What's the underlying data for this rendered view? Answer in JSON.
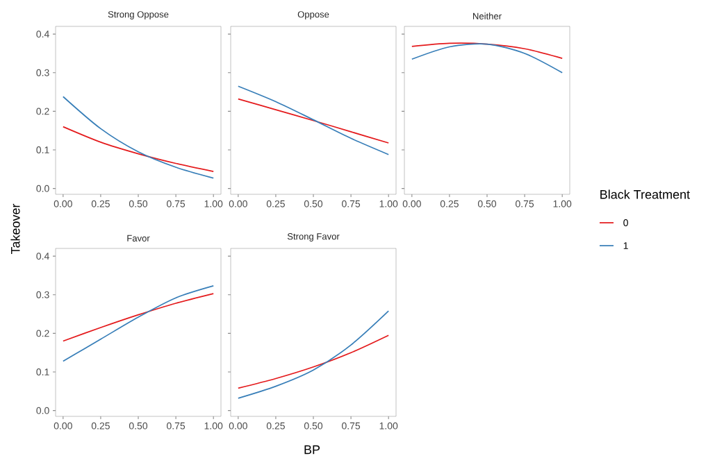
{
  "chart_data": [
    {
      "type": "line",
      "title": "Strong Oppose",
      "ylabel": "Takeover",
      "x": [
        0,
        0.25,
        0.5,
        0.75,
        1
      ],
      "xlim": [
        -0.05,
        1.05
      ],
      "ylim": [
        -0.015,
        0.42
      ],
      "xticks": [
        {
          "value": 0,
          "label": "0.00"
        },
        {
          "value": 0.25,
          "label": "0.25"
        },
        {
          "value": 0.5,
          "label": "0.50"
        },
        {
          "value": 0.75,
          "label": "0.75"
        },
        {
          "value": 1,
          "label": "1.00"
        }
      ],
      "yticks": [
        {
          "value": 0,
          "label": "0.0"
        },
        0.1,
        0.2,
        0.3,
        0.4
      ],
      "series": [
        {
          "color": "#e41a1c",
          "values": [
            0.16,
            0.12,
            0.09,
            0.065,
            0.044
          ]
        },
        {
          "color": "#377eb8",
          "values": [
            0.238,
            0.155,
            0.095,
            0.055,
            0.027
          ]
        }
      ]
    },
    {
      "type": "line",
      "title": "Oppose",
      "x": [
        0,
        0.25,
        0.5,
        0.75,
        1
      ],
      "xlim": [
        -0.05,
        1.05
      ],
      "ylim": [
        -0.015,
        0.42
      ],
      "xticks": [
        {
          "value": 0,
          "label": "0.00"
        },
        {
          "value": 0.25,
          "label": "0.25"
        },
        {
          "value": 0.5,
          "label": "0.50"
        },
        {
          "value": 0.75,
          "label": "0.75"
        },
        {
          "value": 1,
          "label": "1.00"
        }
      ],
      "yticks": [
        {
          "value": 0,
          "label": null
        },
        {
          "value": 0.1,
          "label": null
        },
        {
          "value": 0.2,
          "label": null
        },
        {
          "value": 0.3,
          "label": null
        },
        {
          "value": 0.4,
          "label": null
        }
      ],
      "tick_labels": "x",
      "series": [
        {
          "color": "#e41a1c",
          "values": [
            0.232,
            0.204,
            0.176,
            0.147,
            0.118
          ]
        },
        {
          "color": "#377eb8",
          "values": [
            0.265,
            0.225,
            0.178,
            0.13,
            0.088
          ]
        }
      ]
    },
    {
      "type": "line",
      "title": "Neither",
      "legend_title": "Black Treatment",
      "legend": "right",
      "x": [
        0,
        0.25,
        0.5,
        0.75,
        1
      ],
      "xlim": [
        -0.05,
        1.05
      ],
      "ylim": [
        -0.015,
        0.42
      ],
      "xticks": [
        {
          "value": 0,
          "label": "0.00"
        },
        {
          "value": 0.25,
          "label": "0.25"
        },
        {
          "value": 0.5,
          "label": "0.50"
        },
        {
          "value": 0.75,
          "label": "0.75"
        },
        {
          "value": 1,
          "label": "1.00"
        }
      ],
      "yticks": [
        {
          "value": 0,
          "label": null
        },
        {
          "value": 0.1,
          "label": null
        },
        {
          "value": 0.2,
          "label": null
        },
        {
          "value": 0.3,
          "label": null
        },
        {
          "value": 0.4,
          "label": null
        }
      ],
      "tick_labels": "x",
      "series": [
        {
          "name": "0",
          "color": "#e41a1c",
          "values": [
            0.368,
            0.376,
            0.374,
            0.362,
            0.337
          ]
        },
        {
          "name": "1",
          "color": "#377eb8",
          "values": [
            0.335,
            0.367,
            0.374,
            0.35,
            0.3
          ]
        }
      ]
    },
    {
      "type": "line",
      "title": "Favor",
      "x": [
        0,
        0.25,
        0.5,
        0.75,
        1
      ],
      "xlim": [
        -0.05,
        1.05
      ],
      "ylim": [
        -0.015,
        0.42
      ],
      "xticks": [
        {
          "value": 0,
          "label": "0.00"
        },
        {
          "value": 0.25,
          "label": "0.25"
        },
        {
          "value": 0.5,
          "label": "0.50"
        },
        {
          "value": 0.75,
          "label": "0.75"
        },
        {
          "value": 1,
          "label": "1.00"
        }
      ],
      "yticks": [
        {
          "value": 0,
          "label": "0.0"
        },
        0.1,
        0.2,
        0.3,
        0.4
      ],
      "series": [
        {
          "color": "#e41a1c",
          "values": [
            0.18,
            0.215,
            0.248,
            0.278,
            0.303
          ]
        },
        {
          "color": "#377eb8",
          "values": [
            0.128,
            0.185,
            0.242,
            0.292,
            0.323
          ]
        }
      ]
    },
    {
      "type": "line",
      "title": "Strong Favor",
      "xlabel": "BP",
      "x": [
        0,
        0.25,
        0.5,
        0.75,
        1
      ],
      "xlim": [
        -0.05,
        1.05
      ],
      "ylim": [
        -0.015,
        0.42
      ],
      "xticks": [
        {
          "value": 0,
          "label": "0.00"
        },
        {
          "value": 0.25,
          "label": "0.25"
        },
        {
          "value": 0.5,
          "label": "0.50"
        },
        {
          "value": 0.75,
          "label": "0.75"
        },
        {
          "value": 1,
          "label": "1.00"
        }
      ],
      "yticks": [
        {
          "value": 0,
          "label": null
        },
        {
          "value": 0.1,
          "label": null
        },
        {
          "value": 0.2,
          "label": null
        },
        {
          "value": 0.3,
          "label": null
        },
        {
          "value": 0.4,
          "label": null
        }
      ],
      "tick_labels": "x",
      "series": [
        {
          "color": "#e41a1c",
          "values": [
            0.058,
            0.083,
            0.113,
            0.15,
            0.195
          ]
        },
        {
          "color": "#377eb8",
          "values": [
            0.032,
            0.063,
            0.105,
            0.17,
            0.258
          ]
        }
      ]
    }
  ]
}
